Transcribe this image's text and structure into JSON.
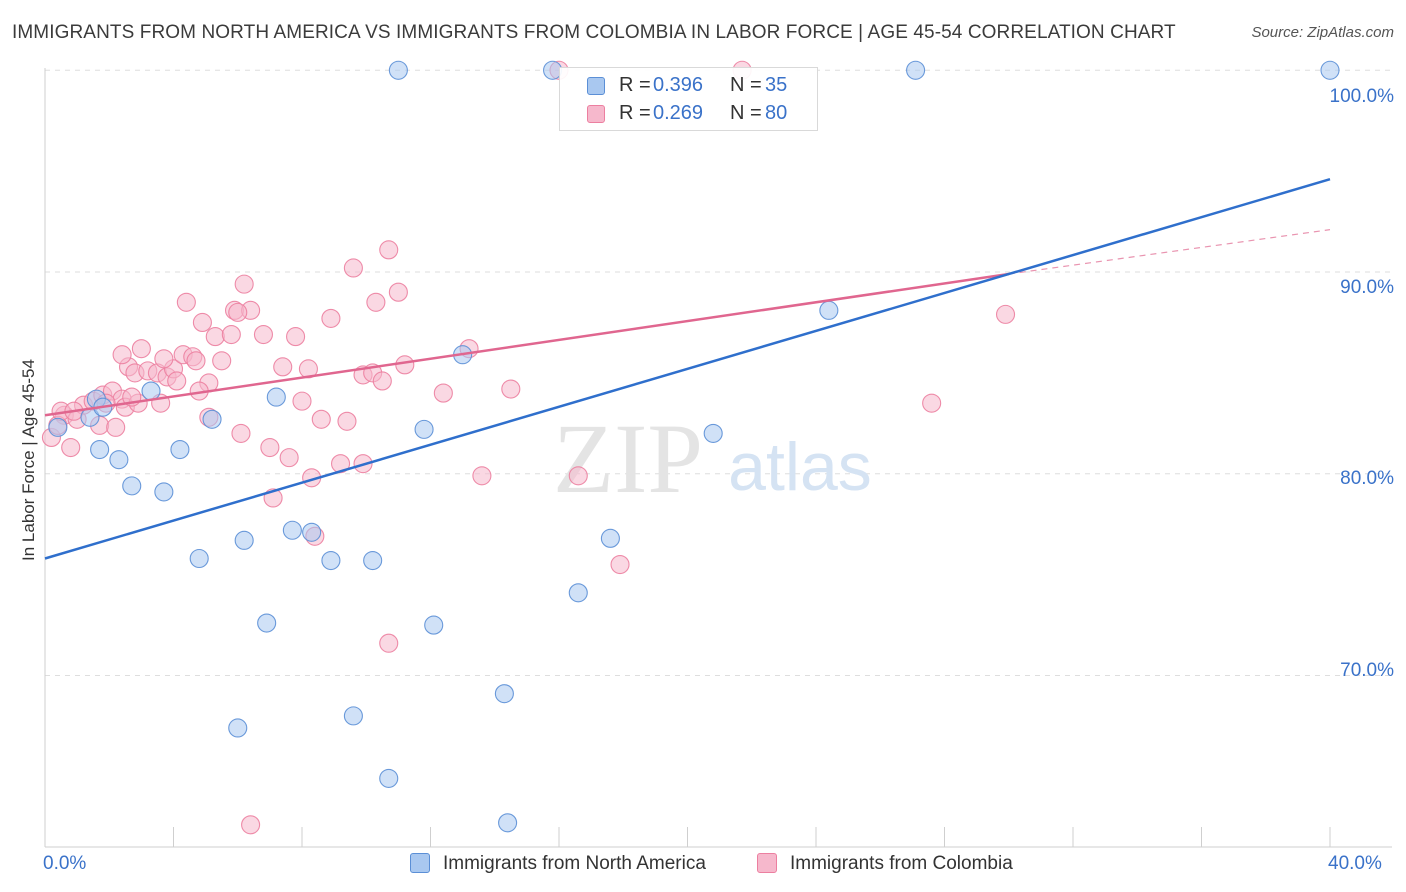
{
  "title": "IMMIGRANTS FROM NORTH AMERICA VS IMMIGRANTS FROM COLOMBIA IN LABOR FORCE | AGE 45-54 CORRELATION CHART",
  "source": "Source: ZipAtlas.com",
  "watermark": {
    "zip": "ZIP",
    "atlas": "atlas"
  },
  "legend_top": [
    {
      "r_label": "R =",
      "r_value": "0.396",
      "n_label": "N =",
      "n_value": "35",
      "color": "#a9c8f0"
    },
    {
      "r_label": "R =",
      "r_value": "0.269",
      "n_label": "N =",
      "n_value": "80",
      "color": "#f6b8cc"
    }
  ],
  "chart_data": {
    "type": "scatter",
    "title": "IMMIGRANTS FROM NORTH AMERICA VS IMMIGRANTS FROM COLOMBIA IN LABOR FORCE | AGE 45-54 CORRELATION CHART",
    "xlabel": "",
    "ylabel": "In Labor Force | Age 45-54",
    "xlim": [
      0,
      40
    ],
    "ylim": [
      61.5,
      101.5
    ],
    "x_tick_labels": [
      {
        "value": 0,
        "label": "0.0%"
      },
      {
        "value": 40,
        "label": "40.0%"
      }
    ],
    "y_tick_labels": [
      {
        "value": 100,
        "label": "100.0%"
      },
      {
        "value": 90,
        "label": "90.0%"
      },
      {
        "value": 80,
        "label": "80.0%"
      },
      {
        "value": 70,
        "label": "70.0%"
      }
    ],
    "y_gridlines": [
      100,
      90,
      80,
      70
    ],
    "x_minor_ticks": [
      0,
      4,
      8,
      12,
      16,
      20,
      24,
      28,
      32,
      36,
      40
    ],
    "grid": true,
    "legend_position": "bottom",
    "series": [
      {
        "name": "Immigrants from North America",
        "color": "#5b8fd6",
        "fill": "#a9c8f0",
        "line_color": "#2f6fcc",
        "trend": {
          "x": [
            0,
            40
          ],
          "y": [
            75.8,
            94.6
          ]
        },
        "points": [
          [
            1.6,
            83.7
          ],
          [
            1.4,
            82.8
          ],
          [
            0.4,
            82.3
          ],
          [
            1.8,
            83.3
          ],
          [
            3.3,
            84.1
          ],
          [
            1.7,
            81.2
          ],
          [
            2.3,
            80.7
          ],
          [
            2.7,
            79.4
          ],
          [
            3.7,
            79.1
          ],
          [
            4.2,
            81.2
          ],
          [
            5.2,
            82.7
          ],
          [
            7.2,
            83.8
          ],
          [
            4.8,
            75.8
          ],
          [
            6.2,
            76.7
          ],
          [
            7.7,
            77.2
          ],
          [
            8.3,
            77.1
          ],
          [
            8.9,
            75.7
          ],
          [
            10.2,
            75.7
          ],
          [
            6.9,
            72.6
          ],
          [
            12.1,
            72.5
          ],
          [
            11.8,
            82.2
          ],
          [
            13.0,
            85.9
          ],
          [
            6.0,
            67.4
          ],
          [
            9.6,
            68.0
          ],
          [
            10.7,
            64.9
          ],
          [
            14.4,
            62.7
          ],
          [
            14.3,
            69.1
          ],
          [
            16.6,
            74.1
          ],
          [
            17.6,
            76.8
          ],
          [
            20.8,
            82.0
          ],
          [
            24.4,
            88.1
          ],
          [
            11.0,
            100.0
          ],
          [
            15.8,
            100.0
          ],
          [
            27.1,
            100.0
          ],
          [
            40.0,
            100.0
          ]
        ]
      },
      {
        "name": "Immigrants from Colombia",
        "color": "#ec7fa0",
        "fill": "#f6b8cc",
        "line_color": "#e0668f",
        "trend": {
          "x": [
            0,
            30.0
          ],
          "y": [
            82.9,
            89.9
          ]
        },
        "trend_dashed": {
          "x": [
            30.0,
            40
          ],
          "y": [
            89.9,
            92.1
          ]
        },
        "points": [
          [
            0.2,
            81.8
          ],
          [
            0.6,
            82.9
          ],
          [
            0.4,
            82.4
          ],
          [
            0.8,
            81.3
          ],
          [
            1.0,
            82.7
          ],
          [
            0.5,
            83.1
          ],
          [
            1.2,
            83.4
          ],
          [
            1.5,
            83.6
          ],
          [
            1.8,
            83.9
          ],
          [
            2.1,
            84.1
          ],
          [
            1.7,
            82.4
          ],
          [
            2.2,
            82.3
          ],
          [
            2.4,
            83.7
          ],
          [
            2.5,
            83.3
          ],
          [
            2.9,
            83.5
          ],
          [
            2.6,
            85.3
          ],
          [
            2.8,
            85.0
          ],
          [
            3.0,
            86.2
          ],
          [
            3.2,
            85.1
          ],
          [
            3.5,
            85.0
          ],
          [
            3.8,
            84.8
          ],
          [
            4.0,
            85.2
          ],
          [
            4.3,
            85.9
          ],
          [
            4.6,
            85.8
          ],
          [
            4.7,
            85.6
          ],
          [
            4.1,
            84.6
          ],
          [
            5.1,
            84.5
          ],
          [
            5.5,
            85.6
          ],
          [
            3.7,
            85.7
          ],
          [
            4.4,
            88.5
          ],
          [
            4.9,
            87.5
          ],
          [
            5.3,
            86.8
          ],
          [
            5.8,
            86.9
          ],
          [
            5.9,
            88.1
          ],
          [
            6.4,
            88.1
          ],
          [
            6.2,
            89.4
          ],
          [
            6.0,
            88.0
          ],
          [
            5.1,
            82.8
          ],
          [
            6.1,
            82.0
          ],
          [
            6.8,
            86.9
          ],
          [
            7.0,
            81.3
          ],
          [
            7.4,
            85.3
          ],
          [
            7.6,
            80.8
          ],
          [
            7.8,
            86.8
          ],
          [
            8.0,
            83.6
          ],
          [
            8.2,
            85.2
          ],
          [
            8.6,
            82.7
          ],
          [
            8.9,
            87.7
          ],
          [
            8.3,
            79.8
          ],
          [
            7.1,
            78.8
          ],
          [
            9.2,
            80.5
          ],
          [
            9.4,
            82.6
          ],
          [
            9.6,
            90.2
          ],
          [
            9.9,
            84.9
          ],
          [
            10.2,
            85.0
          ],
          [
            10.5,
            84.6
          ],
          [
            10.3,
            88.5
          ],
          [
            11.0,
            89.0
          ],
          [
            10.7,
            91.1
          ],
          [
            11.2,
            85.4
          ],
          [
            9.9,
            80.5
          ],
          [
            12.4,
            84.0
          ],
          [
            13.2,
            86.2
          ],
          [
            13.6,
            79.9
          ],
          [
            14.5,
            84.2
          ],
          [
            16.6,
            79.9
          ],
          [
            17.9,
            75.5
          ],
          [
            10.7,
            71.6
          ],
          [
            6.4,
            62.6
          ],
          [
            27.6,
            83.5
          ],
          [
            29.9,
            87.9
          ],
          [
            16.0,
            100.0
          ],
          [
            21.7,
            100.0
          ],
          [
            8.4,
            76.9
          ],
          [
            3.6,
            83.5
          ],
          [
            1.9,
            83.5
          ],
          [
            2.7,
            83.8
          ],
          [
            0.9,
            83.1
          ],
          [
            2.4,
            85.9
          ],
          [
            4.8,
            84.1
          ]
        ]
      }
    ]
  },
  "legend_bottom": [
    {
      "label": "Immigrants from North America",
      "color": "#a9c8f0",
      "border": "#5b8fd6"
    },
    {
      "label": "Immigrants from Colombia",
      "color": "#f6b8cc",
      "border": "#ec7fa0"
    }
  ]
}
